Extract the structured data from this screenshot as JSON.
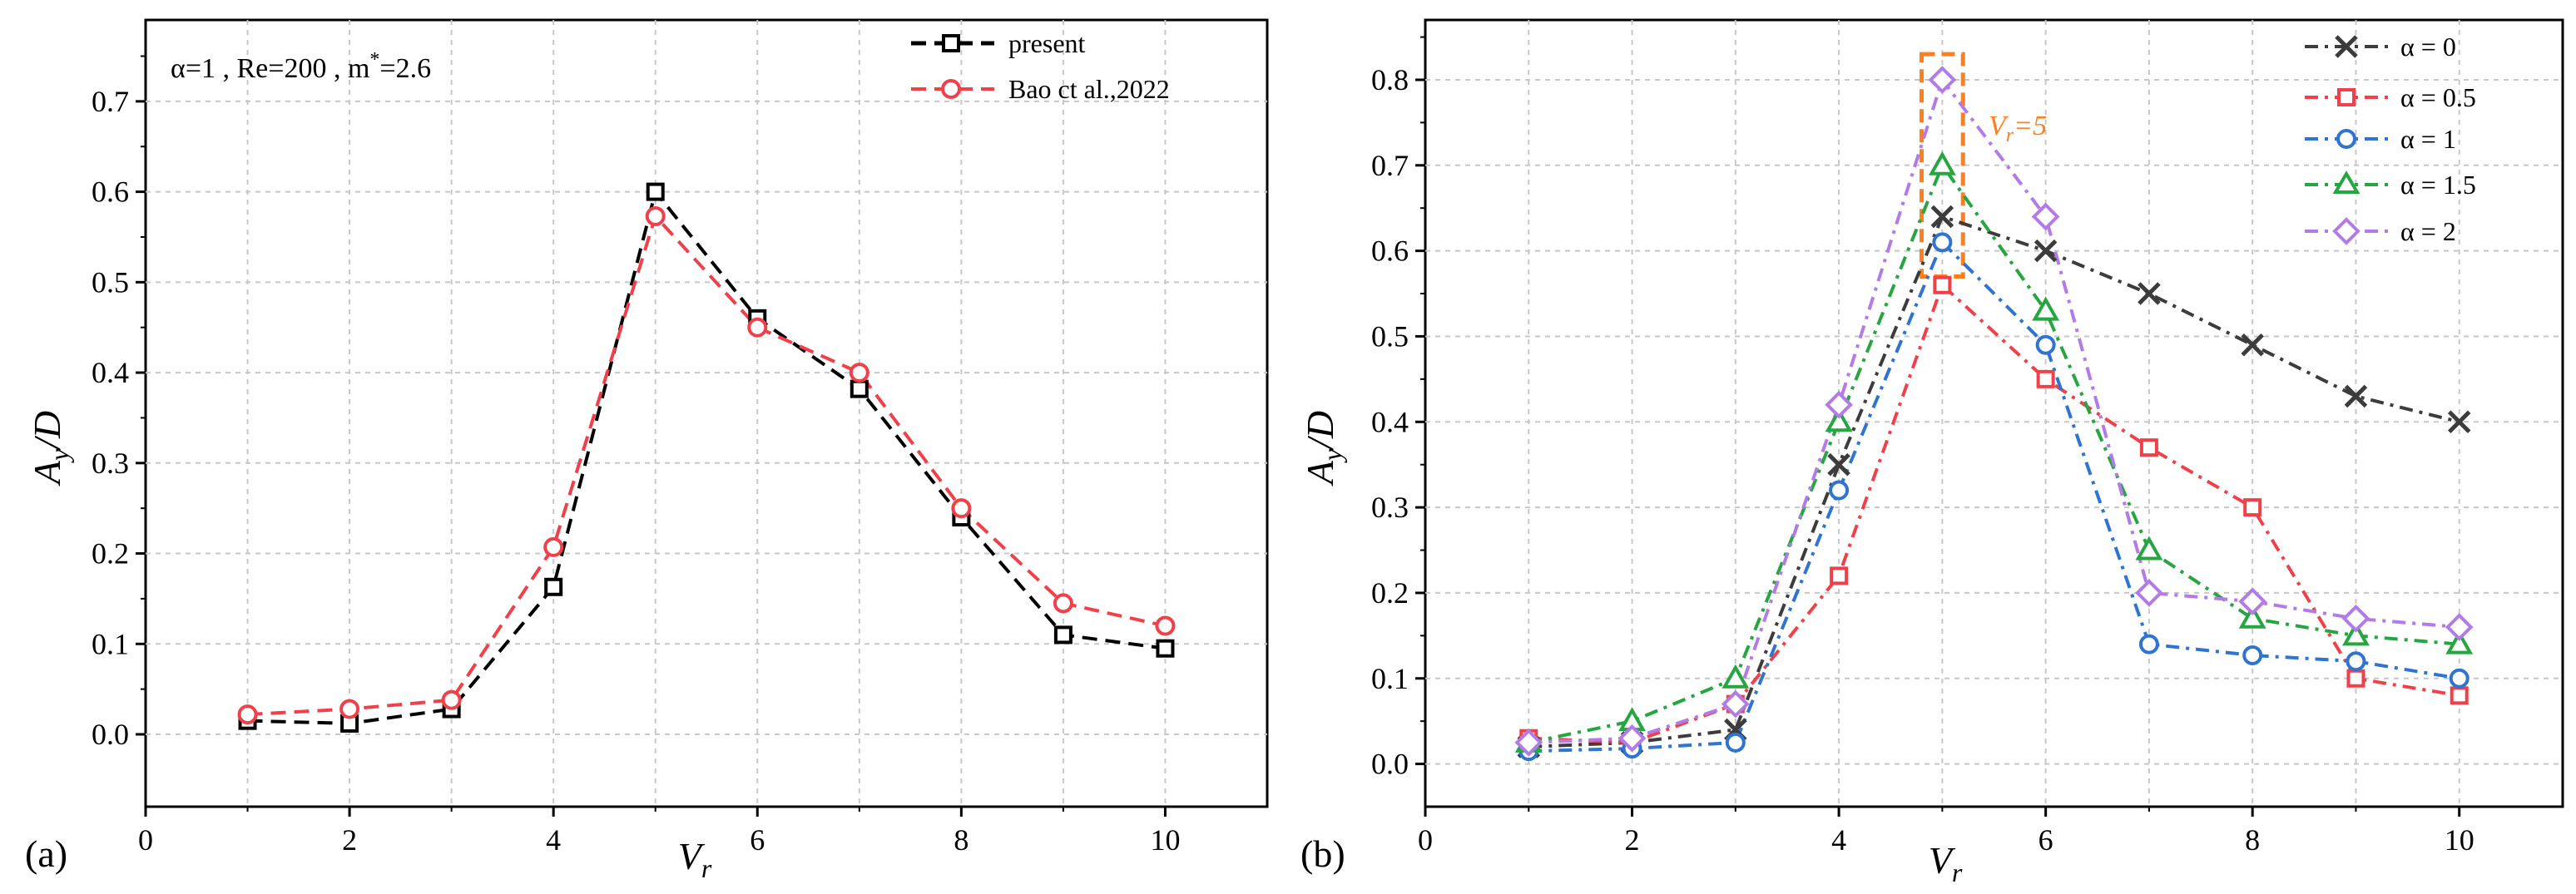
{
  "figure": {
    "colors": {
      "black": "#000000",
      "red": "#f0414b",
      "blue": "#2f74d0",
      "green": "#26a640",
      "purple": "#b27be6",
      "dark": "#3c3c3c",
      "orange": "#ff7f1e"
    }
  },
  "chart_data": [
    {
      "type": "line",
      "panel_label": "(a)",
      "annotation": {
        "alpha": "α=1",
        "re": "Re=200",
        "mass_prefix": "m",
        "mass_sup": "*",
        "mass_suffix": "=2.6"
      },
      "xlabel": {
        "main": "V",
        "sub": "r"
      },
      "ylabel": {
        "main": "A",
        "sub": "y",
        "suffix": "/D"
      },
      "xlim": [
        0,
        11
      ],
      "ylim": [
        -0.08,
        0.79
      ],
      "xticks": [
        "0",
        "2",
        "4",
        "6",
        "8",
        "10"
      ],
      "yticks": [
        "0.0",
        "0.1",
        "0.2",
        "0.3",
        "0.4",
        "0.5",
        "0.6",
        "0.7"
      ],
      "x": [
        1,
        2,
        3,
        4,
        5,
        6,
        7,
        8,
        9,
        10
      ],
      "series": [
        {
          "name": "present",
          "marker": "square",
          "color": "#000000",
          "dash": "18 10",
          "values": [
            0.015,
            0.012,
            0.028,
            0.163,
            0.6,
            0.46,
            0.382,
            0.24,
            0.11,
            0.095
          ]
        },
        {
          "name": "Bao ct al.,2022",
          "marker": "circle",
          "color": "#f0414b",
          "dash": "18 10",
          "values": [
            0.022,
            0.028,
            0.038,
            0.207,
            0.573,
            0.45,
            0.4,
            0.25,
            0.145,
            0.12
          ]
        }
      ],
      "legend_position": "top-right",
      "grid": true
    },
    {
      "type": "line",
      "panel_label": "(b)",
      "annotation": {
        "main": "V",
        "sub": "r",
        "suffix": "=5"
      },
      "xlabel": {
        "main": "V",
        "sub": "r"
      },
      "ylabel": {
        "main": "A",
        "sub": "y",
        "suffix": "/D"
      },
      "xlim": [
        0,
        11
      ],
      "ylim": [
        -0.05,
        0.87
      ],
      "xticks": [
        "0",
        "2",
        "4",
        "6",
        "8",
        "10"
      ],
      "yticks": [
        "0.0",
        "0.1",
        "0.2",
        "0.3",
        "0.4",
        "0.5",
        "0.6",
        "0.7",
        "0.8"
      ],
      "x": [
        1,
        2,
        3,
        4,
        5,
        6,
        7,
        8,
        9,
        10
      ],
      "series": [
        {
          "name": "α = 0",
          "marker": "x",
          "color": "#3c3c3c",
          "dash": "16 8 4 8",
          "values": [
            0.02,
            0.025,
            0.04,
            0.35,
            0.64,
            0.6,
            0.55,
            0.49,
            0.43,
            0.4
          ]
        },
        {
          "name": "α = 0.5",
          "marker": "square",
          "color": "#f0414b",
          "dash": "16 8 4 8",
          "values": [
            0.03,
            0.025,
            0.07,
            0.22,
            0.56,
            0.45,
            0.37,
            0.3,
            0.1,
            0.08
          ]
        },
        {
          "name": "α = 1",
          "marker": "circle",
          "color": "#2f74d0",
          "dash": "16 8 4 8",
          "values": [
            0.015,
            0.018,
            0.025,
            0.32,
            0.61,
            0.49,
            0.14,
            0.127,
            0.12,
            0.1
          ]
        },
        {
          "name": "α = 1.5",
          "marker": "triangle",
          "color": "#26a640",
          "dash": "16 8 4 8",
          "values": [
            0.025,
            0.05,
            0.1,
            0.4,
            0.7,
            0.53,
            0.25,
            0.17,
            0.15,
            0.14
          ]
        },
        {
          "name": "α = 2",
          "marker": "diamond",
          "color": "#b27be6",
          "dash": "16 8 4 8",
          "values": [
            0.025,
            0.03,
            0.07,
            0.42,
            0.8,
            0.64,
            0.2,
            0.19,
            0.17,
            0.16
          ]
        }
      ],
      "highlight": {
        "x_range": [
          4.8,
          5.2
        ],
        "y_range": [
          0.57,
          0.83
        ],
        "color": "#ff7f1e"
      },
      "legend_position": "top-right",
      "grid": true
    }
  ]
}
